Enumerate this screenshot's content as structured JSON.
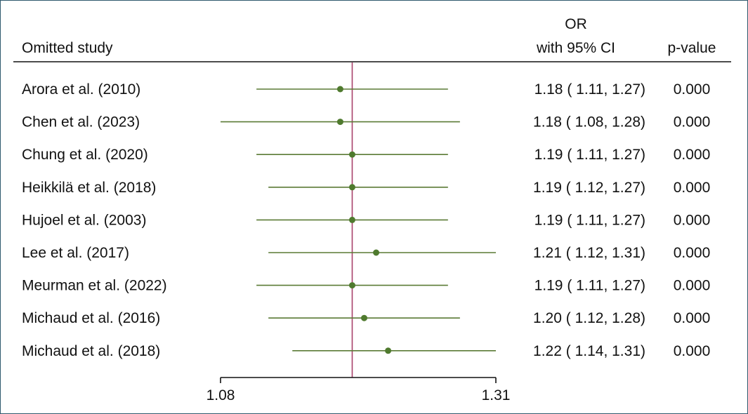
{
  "chart_data": {
    "type": "forest",
    "headers": {
      "study": "Omitted study",
      "or_line1": "OR",
      "or_line2": "with 95% CI",
      "pvalue": "p-value"
    },
    "x_ticks": [
      "1.08",
      "1.31"
    ],
    "xlim": [
      1.08,
      1.31
    ],
    "reference_line": 1.19,
    "colors": {
      "ci": "#5a7a35",
      "point": "#4f7a2e",
      "reference": "#a8416a",
      "axis": "#111111"
    },
    "studies": [
      {
        "name": "Arora et al. (2010)",
        "or": 1.18,
        "lo": 1.11,
        "hi": 1.27,
        "ci_text": "1.18 ( 1.11,  1.27)",
        "p": "0.000"
      },
      {
        "name": "Chen et al. (2023)",
        "or": 1.18,
        "lo": 1.08,
        "hi": 1.28,
        "ci_text": "1.18 ( 1.08,  1.28)",
        "p": "0.000"
      },
      {
        "name": "Chung et al. (2020)",
        "or": 1.19,
        "lo": 1.11,
        "hi": 1.27,
        "ci_text": "1.19 ( 1.11,  1.27)",
        "p": "0.000"
      },
      {
        "name": "Heikkilä et al. (2018)",
        "or": 1.19,
        "lo": 1.12,
        "hi": 1.27,
        "ci_text": "1.19 ( 1.12,  1.27)",
        "p": "0.000"
      },
      {
        "name": "Hujoel et al. (2003)",
        "or": 1.19,
        "lo": 1.11,
        "hi": 1.27,
        "ci_text": "1.19 ( 1.11,  1.27)",
        "p": "0.000"
      },
      {
        "name": "Lee et al. (2017)",
        "or": 1.21,
        "lo": 1.12,
        "hi": 1.31,
        "ci_text": "1.21 ( 1.12,  1.31)",
        "p": "0.000"
      },
      {
        "name": "Meurman et al. (2022)",
        "or": 1.19,
        "lo": 1.11,
        "hi": 1.27,
        "ci_text": "1.19 ( 1.11,  1.27)",
        "p": "0.000"
      },
      {
        "name": "Michaud et al. (2016)",
        "or": 1.2,
        "lo": 1.12,
        "hi": 1.28,
        "ci_text": "1.20 ( 1.12,  1.28)",
        "p": "0.000"
      },
      {
        "name": "Michaud et al. (2018)",
        "or": 1.22,
        "lo": 1.14,
        "hi": 1.31,
        "ci_text": "1.22 ( 1.14,  1.31)",
        "p": "0.000"
      }
    ]
  }
}
